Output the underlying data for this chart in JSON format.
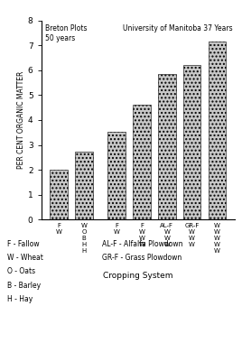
{
  "bar_values": [
    2.02,
    2.72,
    3.52,
    4.62,
    5.85,
    6.22,
    7.15
  ],
  "bar_positions": [
    0,
    1,
    2.3,
    3.3,
    4.3,
    5.3,
    6.3
  ],
  "bar_labels": [
    "F\nW",
    "W\nO\nB\nH\nH",
    "F\nW",
    "F\nW\nW\nW",
    "AL-F\nW\nW\nW",
    "GR-F\nW\nW\nW",
    "W\nW\nW\nW\nW"
  ],
  "ylabel": "PER CENT ORGANIC MATTER",
  "xlabel": "Cropping System",
  "ylim": [
    0,
    8
  ],
  "yticks": [
    0,
    1,
    2,
    3,
    4,
    5,
    6,
    7,
    8
  ],
  "title_left": "Breton Plots\n50 years",
  "title_right": "University of Manitoba 37 Years",
  "bar_color": "#c8c8c8",
  "bar_width": 0.7
}
